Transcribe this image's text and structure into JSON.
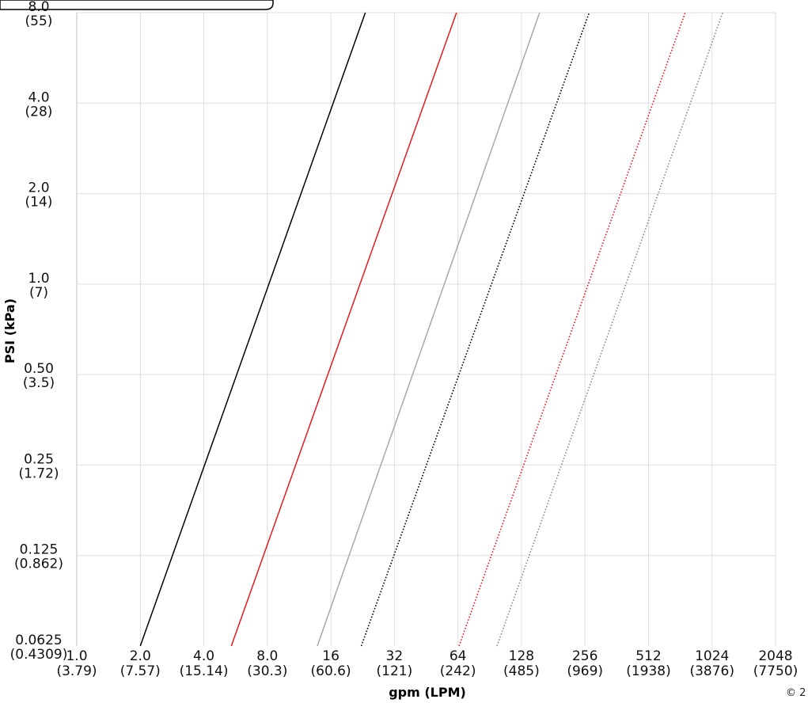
{
  "chart_data": {
    "type": "line",
    "xlabel": "gpm (LPM)",
    "ylabel": "PSI (kPa)",
    "x_scale": "log2",
    "y_scale": "log2",
    "xlim": [
      1.0,
      2048
    ],
    "ylim": [
      0.0625,
      8.0
    ],
    "grid": true,
    "x_ticks": [
      {
        "value": 1.0,
        "label": "1.0",
        "sub": "(3.79)"
      },
      {
        "value": 2.0,
        "label": "2.0",
        "sub": "(7.57)"
      },
      {
        "value": 4.0,
        "label": "4.0",
        "sub": "(15.14)"
      },
      {
        "value": 8.0,
        "label": "8.0",
        "sub": "(30.3)"
      },
      {
        "value": 16,
        "label": "16",
        "sub": "(60.6)"
      },
      {
        "value": 32,
        "label": "32",
        "sub": "(121)"
      },
      {
        "value": 64,
        "label": "64",
        "sub": "(242)"
      },
      {
        "value": 128,
        "label": "128",
        "sub": "(485)"
      },
      {
        "value": 256,
        "label": "256",
        "sub": "(969)"
      },
      {
        "value": 512,
        "label": "512",
        "sub": "(1938)"
      },
      {
        "value": 1024,
        "label": "1024",
        "sub": "(3876)"
      },
      {
        "value": 2048,
        "label": "2048",
        "sub": "(7750)"
      }
    ],
    "y_ticks": [
      {
        "value": 8.0,
        "label": "8.0",
        "sub": "(55)"
      },
      {
        "value": 4.0,
        "label": "4.0",
        "sub": "(28)"
      },
      {
        "value": 2.0,
        "label": "2.0",
        "sub": "(14)"
      },
      {
        "value": 1.0,
        "label": "1.0",
        "sub": "(7)"
      },
      {
        "value": 0.5,
        "label": "0.50",
        "sub": "(3.5)"
      },
      {
        "value": 0.25,
        "label": "0.25",
        "sub": "(1.72)"
      },
      {
        "value": 0.125,
        "label": "0.125",
        "sub": "(0.862)"
      },
      {
        "value": 0.0625,
        "label": "0.0625",
        "sub": "(0.4309)"
      }
    ],
    "series": [
      {
        "color": "#000000",
        "style": "solid",
        "points": [
          [
            2.0,
            0.0625
          ],
          [
            23.3,
            8.0
          ]
        ]
      },
      {
        "color": "#e01b24",
        "style": "solid",
        "points": [
          [
            5.4,
            0.0625
          ],
          [
            63.0,
            8.0
          ]
        ]
      },
      {
        "color": "#a8a8a8",
        "style": "solid",
        "points": [
          [
            13.8,
            0.0625
          ],
          [
            156,
            8.0
          ]
        ]
      },
      {
        "color": "#000000",
        "style": "dotted",
        "points": [
          [
            22.3,
            0.0625
          ],
          [
            268,
            8.0
          ]
        ]
      },
      {
        "color": "#e01b24",
        "style": "dotted",
        "points": [
          [
            64.8,
            0.0625
          ],
          [
            764,
            8.0
          ]
        ]
      },
      {
        "color": "#8c8c8c",
        "style": "dotted",
        "points": [
          [
            98.0,
            0.0625
          ],
          [
            1150,
            8.0
          ]
        ]
      }
    ]
  },
  "footer": {
    "copyright_fragment": "© 2"
  }
}
